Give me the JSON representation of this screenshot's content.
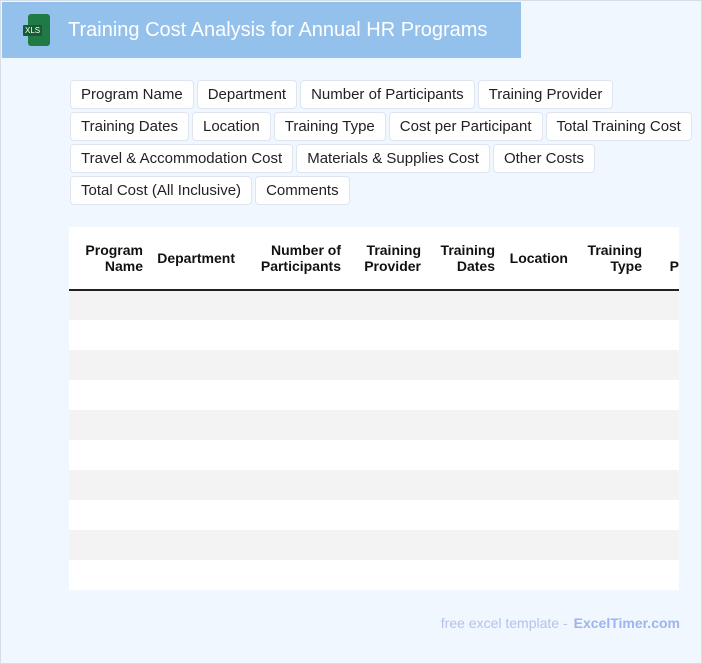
{
  "header": {
    "title": "Training Cost Analysis for Annual HR Programs",
    "icon": "xls-file-icon",
    "icon_label": "XLS"
  },
  "tags": [
    "Program Name",
    "Department",
    "Number of Participants",
    "Training Provider",
    "Training Dates",
    "Location",
    "Training Type",
    "Cost per Participant",
    "Total Training Cost",
    "Travel & Accommodation Cost",
    "Materials & Supplies Cost",
    "Other Costs",
    "Total Cost (All Inclusive)",
    "Comments"
  ],
  "table": {
    "columns": [
      "Program Name",
      "Department",
      "Number of Participants",
      "Training Provider",
      "Training Dates",
      "Location",
      "Training Type",
      "Cost per Participant"
    ],
    "row_count": 10
  },
  "footer": {
    "text": "free excel template -",
    "brand": "ExcelTimer.com"
  }
}
